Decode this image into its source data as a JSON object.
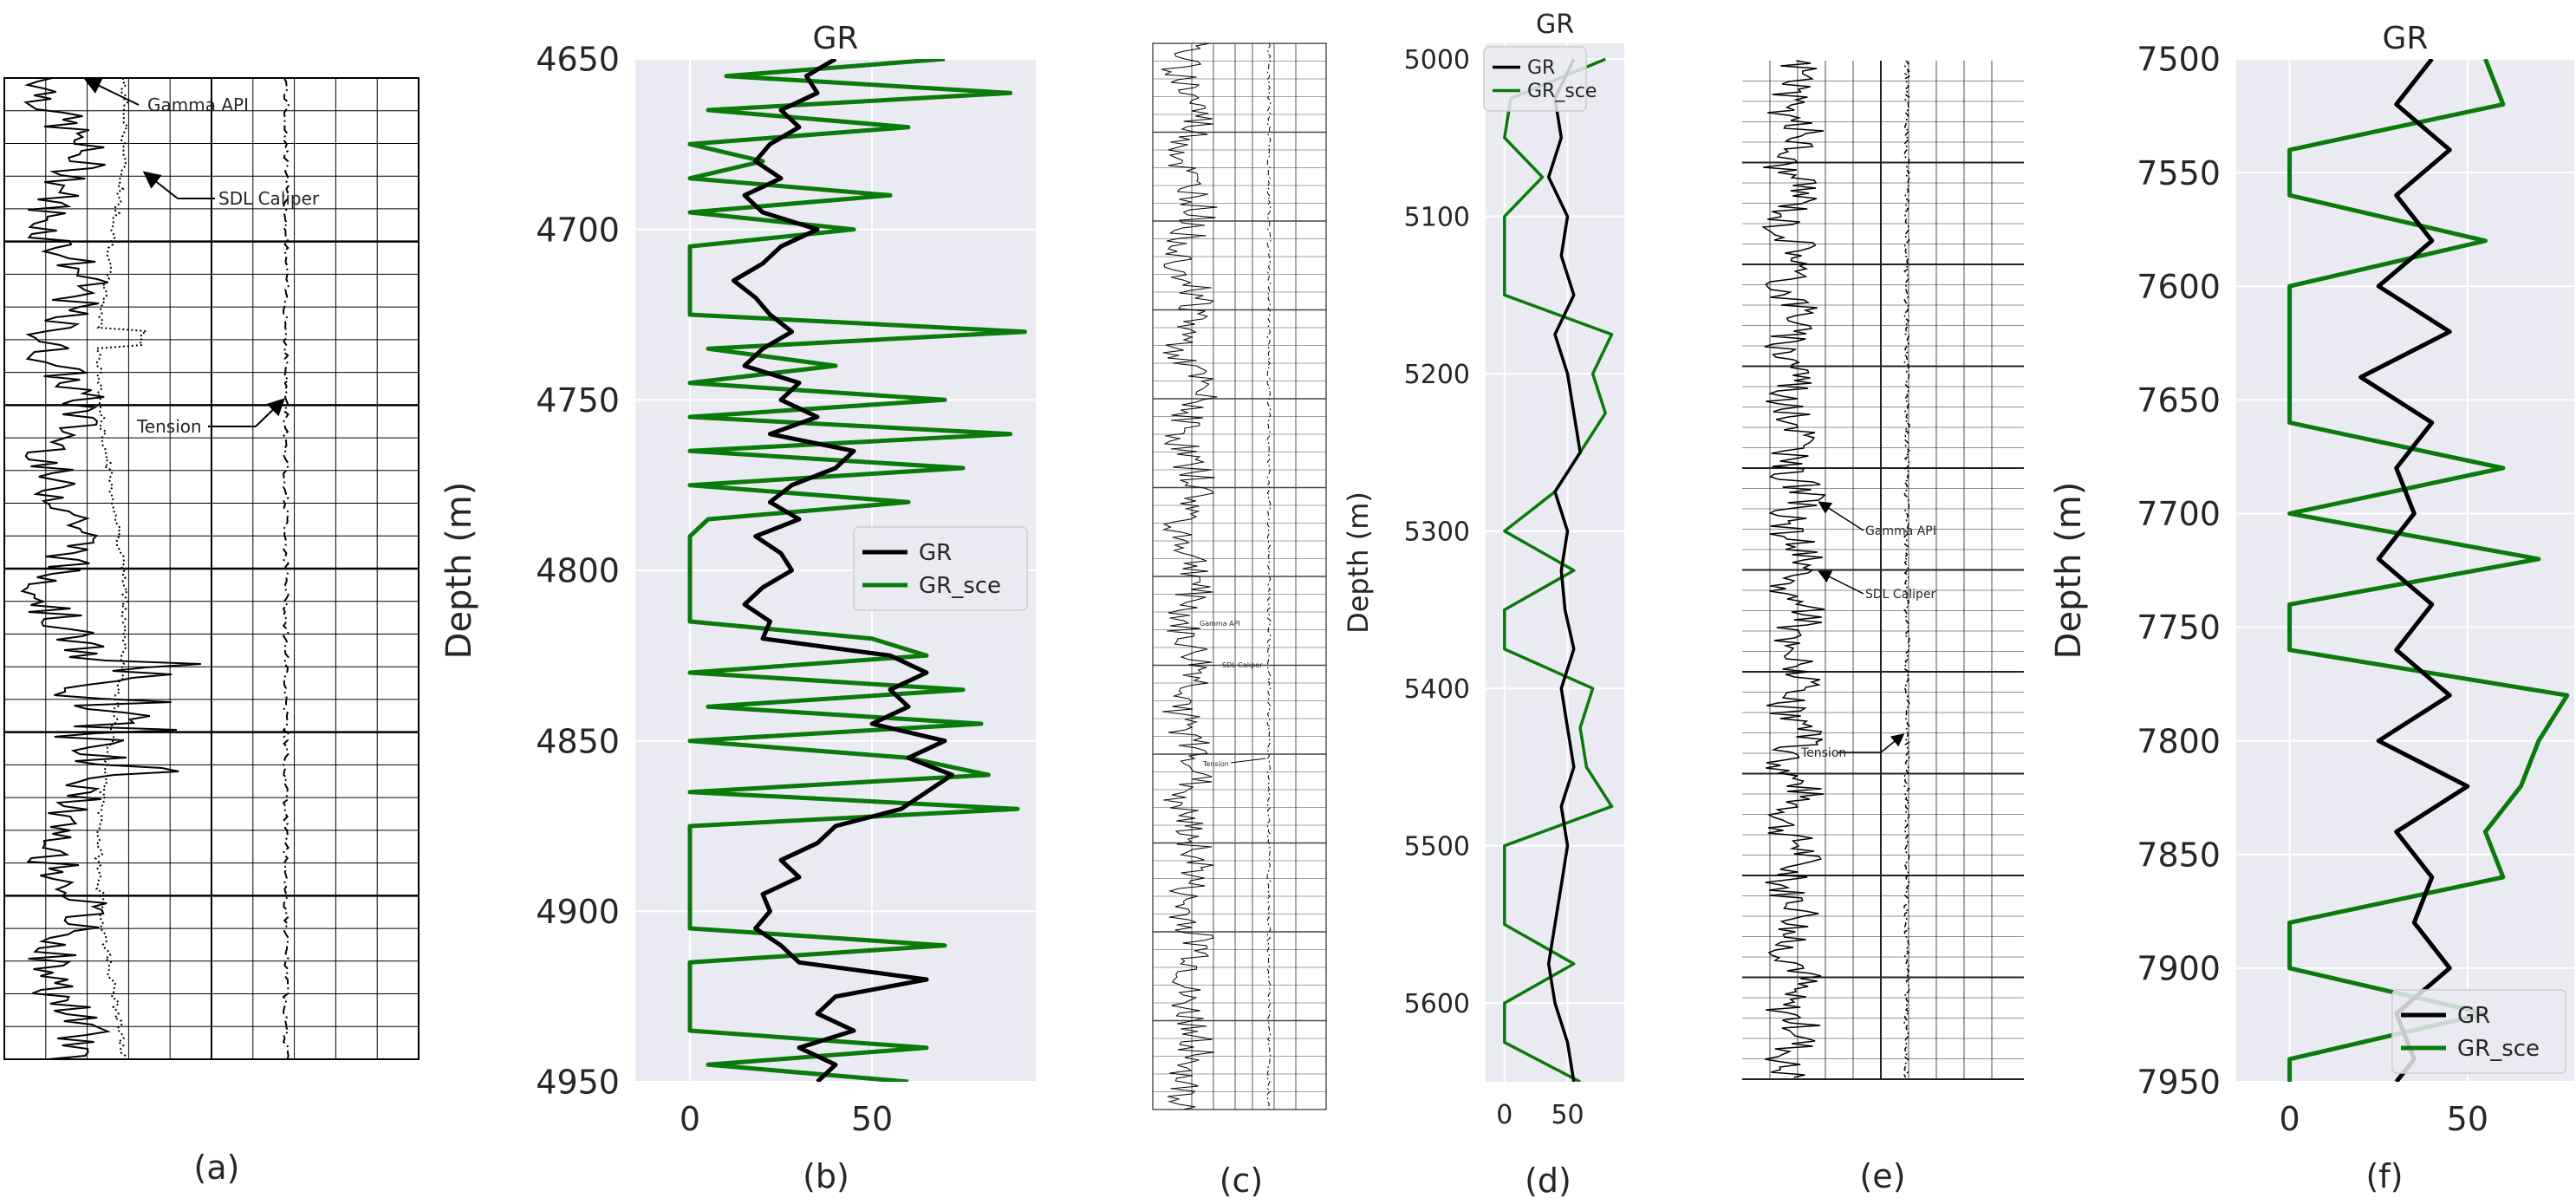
{
  "figure": {
    "captions": [
      "(a)",
      "(b)",
      "(c)",
      "(d)",
      "(e)",
      "(f)"
    ]
  },
  "colors": {
    "gr": "#000000",
    "gr_sce": "#0a7a0a",
    "plot_bg": "#eaeaf2",
    "grid": "#ffffff",
    "text": "#262626"
  },
  "scans": {
    "a": {
      "annotations": [
        "Gamma API",
        "SDL Caliper",
        "Tension"
      ],
      "major_divisions": 6,
      "columns": 10
    },
    "c": {
      "annotations": [
        "Gamma API",
        "SDL Caliper",
        "Tension"
      ]
    },
    "e": {
      "annotations": [
        "Gamma API",
        "SDL Caliper",
        "Tension"
      ]
    }
  },
  "chart_data": [
    {
      "id": "b",
      "type": "line",
      "title": "GR",
      "xlabel": "",
      "ylabel": "Depth (m)",
      "xlim": [
        -15,
        95
      ],
      "xticks": [
        0,
        50
      ],
      "ylim": [
        4950,
        4650
      ],
      "yticks": [
        4650,
        4700,
        4750,
        4800,
        4850,
        4900,
        4950
      ],
      "legend": "right-middle",
      "series": [
        {
          "name": "GR",
          "depth": [
            4650,
            4655,
            4660,
            4665,
            4670,
            4675,
            4680,
            4685,
            4690,
            4695,
            4700,
            4705,
            4710,
            4715,
            4720,
            4725,
            4730,
            4735,
            4740,
            4745,
            4750,
            4755,
            4760,
            4765,
            4770,
            4775,
            4780,
            4785,
            4790,
            4795,
            4800,
            4805,
            4810,
            4815,
            4820,
            4825,
            4830,
            4835,
            4840,
            4845,
            4850,
            4855,
            4860,
            4865,
            4870,
            4875,
            4880,
            4885,
            4890,
            4895,
            4900,
            4905,
            4910,
            4915,
            4920,
            4925,
            4930,
            4935,
            4940,
            4945,
            4950
          ],
          "values": [
            40,
            32,
            35,
            25,
            30,
            22,
            18,
            25,
            15,
            20,
            35,
            25,
            20,
            12,
            18,
            22,
            28,
            20,
            15,
            30,
            25,
            35,
            22,
            45,
            40,
            28,
            22,
            30,
            18,
            25,
            28,
            20,
            15,
            22,
            20,
            55,
            65,
            55,
            60,
            50,
            70,
            60,
            72,
            65,
            58,
            40,
            35,
            25,
            30,
            20,
            22,
            18,
            25,
            30,
            65,
            40,
            35,
            45,
            30,
            40,
            35
          ]
        },
        {
          "name": "GR_sce",
          "depth": [
            4650,
            4655,
            4660,
            4665,
            4670,
            4675,
            4680,
            4685,
            4690,
            4695,
            4700,
            4705,
            4710,
            4715,
            4720,
            4725,
            4730,
            4735,
            4740,
            4745,
            4750,
            4755,
            4760,
            4765,
            4770,
            4775,
            4780,
            4785,
            4790,
            4795,
            4800,
            4805,
            4810,
            4815,
            4820,
            4825,
            4830,
            4835,
            4840,
            4845,
            4850,
            4855,
            4860,
            4865,
            4870,
            4875,
            4880,
            4885,
            4890,
            4895,
            4900,
            4905,
            4910,
            4915,
            4920,
            4925,
            4930,
            4935,
            4940,
            4945,
            4950
          ],
          "values": [
            70,
            10,
            88,
            5,
            60,
            0,
            20,
            0,
            55,
            0,
            45,
            0,
            0,
            0,
            0,
            0,
            92,
            5,
            40,
            0,
            70,
            0,
            88,
            0,
            75,
            0,
            60,
            5,
            0,
            0,
            0,
            0,
            0,
            0,
            50,
            65,
            0,
            75,
            5,
            80,
            0,
            60,
            82,
            0,
            90,
            0,
            0,
            0,
            0,
            0,
            0,
            0,
            70,
            0,
            0,
            0,
            0,
            0,
            65,
            5,
            60
          ]
        }
      ]
    },
    {
      "id": "d",
      "type": "line",
      "title": "GR",
      "xlabel": "",
      "ylabel": "Depth (m)",
      "xlim": [
        -15,
        95
      ],
      "xticks": [
        0,
        50
      ],
      "ylim": [
        5650,
        4990
      ],
      "yticks": [
        5000,
        5100,
        5200,
        5300,
        5400,
        5500,
        5600
      ],
      "legend": "top-left",
      "series": [
        {
          "name": "GR",
          "depth": [
            5000,
            5025,
            5050,
            5075,
            5100,
            5125,
            5150,
            5175,
            5200,
            5225,
            5250,
            5275,
            5300,
            5325,
            5350,
            5375,
            5400,
            5425,
            5450,
            5475,
            5500,
            5525,
            5550,
            5575,
            5600,
            5625,
            5650
          ],
          "values": [
            55,
            40,
            45,
            35,
            50,
            45,
            55,
            40,
            50,
            55,
            60,
            40,
            50,
            45,
            48,
            55,
            45,
            50,
            55,
            45,
            50,
            45,
            40,
            35,
            40,
            50,
            55
          ]
        },
        {
          "name": "GR_sce",
          "depth": [
            5000,
            5025,
            5050,
            5075,
            5100,
            5125,
            5150,
            5175,
            5200,
            5225,
            5250,
            5275,
            5300,
            5325,
            5350,
            5375,
            5400,
            5425,
            5450,
            5475,
            5500,
            5525,
            5550,
            5575,
            5600,
            5625,
            5650
          ],
          "values": [
            80,
            5,
            0,
            30,
            0,
            0,
            0,
            85,
            70,
            80,
            60,
            40,
            0,
            55,
            0,
            0,
            70,
            60,
            65,
            85,
            0,
            0,
            0,
            55,
            0,
            0,
            60
          ]
        }
      ]
    },
    {
      "id": "f",
      "type": "line",
      "title": "GR",
      "xlabel": "",
      "ylabel": "Depth (m)",
      "xlim": [
        -15,
        80
      ],
      "xticks": [
        0,
        50
      ],
      "ylim": [
        7950,
        7500
      ],
      "yticks": [
        7500,
        7550,
        7600,
        7650,
        7700,
        7750,
        7800,
        7850,
        7900,
        7950
      ],
      "legend": "bottom-right",
      "series": [
        {
          "name": "GR",
          "depth": [
            7500,
            7520,
            7540,
            7560,
            7580,
            7600,
            7620,
            7640,
            7660,
            7680,
            7700,
            7720,
            7740,
            7760,
            7780,
            7800,
            7820,
            7840,
            7860,
            7880,
            7900,
            7920,
            7940,
            7950
          ],
          "values": [
            40,
            30,
            45,
            30,
            40,
            25,
            45,
            20,
            40,
            30,
            35,
            25,
            40,
            30,
            45,
            25,
            50,
            30,
            40,
            35,
            45,
            30,
            35,
            30
          ]
        },
        {
          "name": "GR_sce",
          "depth": [
            7500,
            7520,
            7540,
            7560,
            7580,
            7600,
            7620,
            7640,
            7660,
            7680,
            7700,
            7720,
            7740,
            7760,
            7780,
            7800,
            7820,
            7840,
            7860,
            7880,
            7900,
            7920,
            7940,
            7950
          ],
          "values": [
            55,
            60,
            0,
            0,
            55,
            0,
            0,
            0,
            0,
            60,
            0,
            70,
            0,
            0,
            78,
            70,
            65,
            55,
            60,
            0,
            0,
            55,
            0,
            0
          ]
        }
      ]
    }
  ]
}
